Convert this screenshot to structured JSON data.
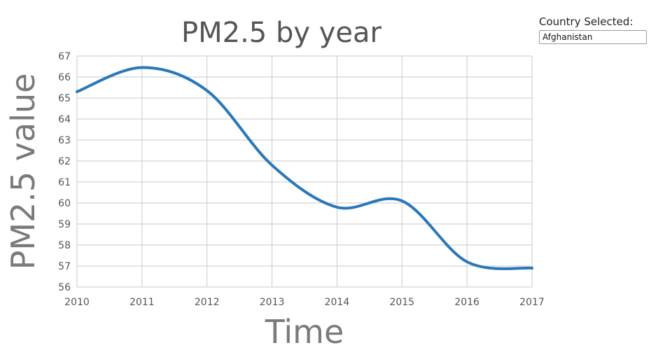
{
  "selector": {
    "label": "Country Selected:",
    "value": "Afghanistan"
  },
  "colors": {
    "line": "#2a78b9",
    "grid": "#c9c9c9",
    "title": "#555555",
    "axis_title": "#7a7a7a"
  },
  "chart_data": {
    "type": "line",
    "title": "PM2.5 by year",
    "xlabel": "Time",
    "ylabel": "PM2.5 value",
    "x": [
      2010,
      2011,
      2012,
      2013,
      2014,
      2015,
      2016,
      2017
    ],
    "series": [
      {
        "values": [
          65.3,
          66.45,
          65.35,
          61.8,
          59.8,
          60.1,
          57.2,
          56.9
        ]
      }
    ],
    "xlim": [
      2010,
      2017
    ],
    "ylim": [
      56,
      67
    ],
    "x_ticks": [
      2010,
      2011,
      2012,
      2013,
      2014,
      2015,
      2016,
      2017
    ],
    "y_ticks": [
      56,
      57,
      58,
      59,
      60,
      61,
      62,
      63,
      64,
      65,
      66,
      67
    ],
    "grid": true,
    "smooth": true
  }
}
